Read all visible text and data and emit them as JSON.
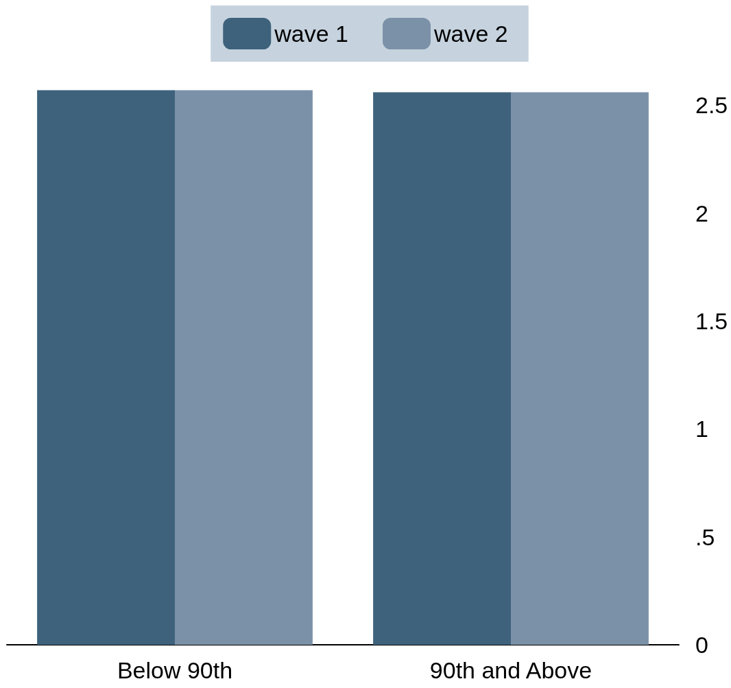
{
  "chart_data": {
    "type": "bar",
    "categories": [
      "Below 90th",
      "90th and Above"
    ],
    "series": [
      {
        "name": "wave 1",
        "color": "#3e627c",
        "values": [
          2.57,
          2.56
        ]
      },
      {
        "name": "wave 2",
        "color": "#7b91a8",
        "values": [
          2.57,
          2.56
        ]
      }
    ],
    "ylim": [
      0,
      2.6
    ],
    "yticks": [
      0,
      {
        "value": 0.5,
        "label": ".5"
      },
      1,
      1.5,
      2,
      2.5
    ],
    "grid": false,
    "legend": "top"
  }
}
